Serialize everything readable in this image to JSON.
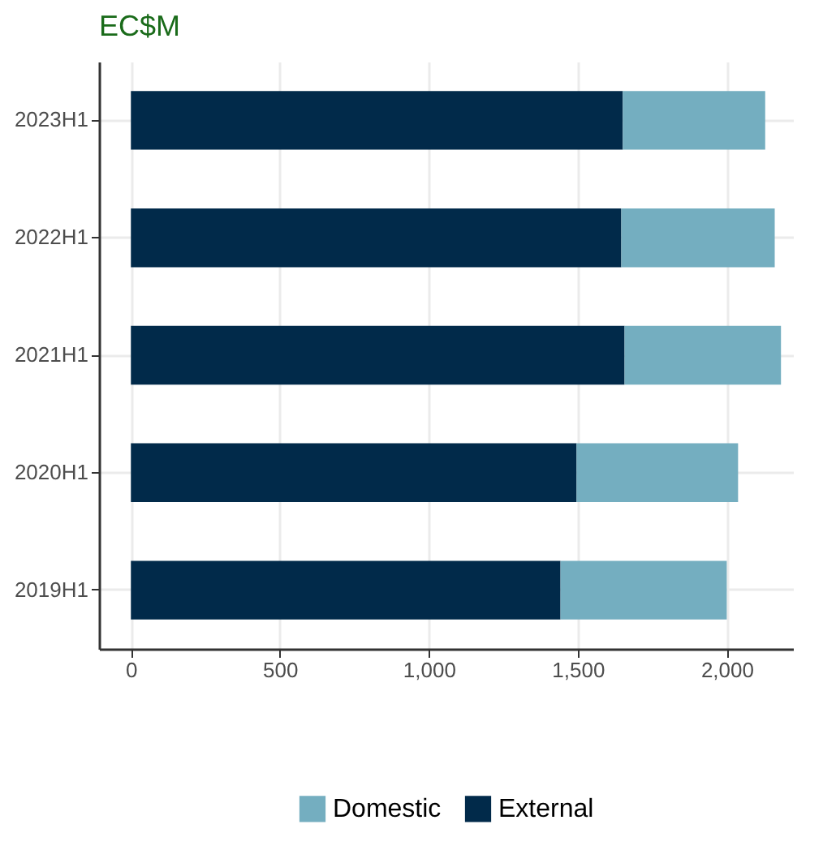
{
  "chart_data": {
    "type": "bar",
    "title": "EC$M",
    "orientation": "horizontal",
    "stacked": true,
    "categories": [
      "2023H1",
      "2022H1",
      "2021H1",
      "2020H1",
      "2019H1"
    ],
    "series": [
      {
        "name": "External",
        "color": "#012a4a",
        "values": [
          1651,
          1646,
          1657,
          1496,
          1442
        ]
      },
      {
        "name": "Domestic",
        "color": "#74aec0",
        "values": [
          478,
          515,
          525,
          542,
          558
        ]
      }
    ],
    "xlim": [
      -107,
      2225
    ],
    "xticks": [
      0,
      {
        "value": 500,
        "label": "500"
      },
      {
        "value": 1000,
        "label": "1,000"
      },
      {
        "value": 1500,
        "label": "1,500"
      },
      {
        "value": 2000,
        "label": "2,000"
      }
    ],
    "grid": true,
    "legend": "bottom"
  }
}
